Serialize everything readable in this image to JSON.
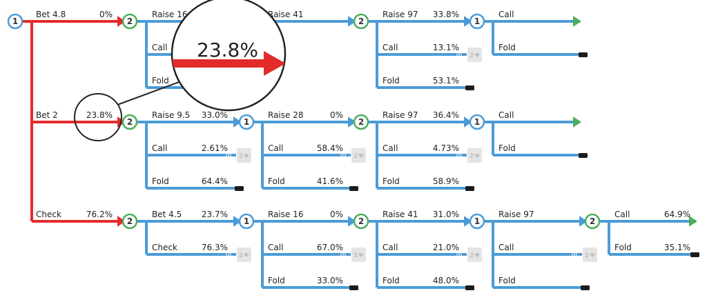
{
  "colors": {
    "red": "#e32b2b",
    "blue": "#4b9bd7",
    "green": "#4cae5a",
    "end": "#1c1c1c",
    "card_bg": "#e4e4e4"
  },
  "nodes": [
    {
      "id": "n0",
      "player": "1",
      "color": "blue"
    },
    {
      "id": "n1",
      "player": "2",
      "color": "green"
    },
    {
      "id": "n4",
      "player": "2",
      "color": "green"
    },
    {
      "id": "n5",
      "player": "1",
      "color": "blue"
    },
    {
      "id": "n6",
      "player": "2",
      "color": "green"
    },
    {
      "id": "n7",
      "player": "1",
      "color": "blue"
    },
    {
      "id": "n8",
      "player": "2",
      "color": "green"
    },
    {
      "id": "n9",
      "player": "1",
      "color": "blue"
    },
    {
      "id": "n10",
      "player": "1",
      "color": "blue"
    },
    {
      "id": "n11",
      "player": "2",
      "color": "green"
    },
    {
      "id": "n12",
      "player": "1",
      "color": "blue"
    },
    {
      "id": "n13",
      "player": "2",
      "color": "green"
    }
  ],
  "edges": [
    {
      "id": "e-bet48",
      "label": "Bet 4.8",
      "pct": "0%",
      "color": "red"
    },
    {
      "id": "e-bet2",
      "label": "Bet 2",
      "pct": "23.8%",
      "color": "red"
    },
    {
      "id": "e-check",
      "label": "Check",
      "pct": "76.2%",
      "color": "red"
    },
    {
      "id": "e-r1-raise165",
      "label": "Raise 16.5",
      "pct": "",
      "color": "blue"
    },
    {
      "id": "e-r1-call",
      "label": "Call",
      "pct": "",
      "color": "blue"
    },
    {
      "id": "e-r1-fold",
      "label": "Fold",
      "pct": "",
      "color": "blue"
    },
    {
      "id": "e-r1-raise41",
      "label": "Raise 41",
      "pct": "",
      "color": "blue"
    },
    {
      "id": "e-r1-raise97",
      "label": "Raise 97",
      "pct": "33.8%",
      "color": "blue"
    },
    {
      "id": "e-r1-call2",
      "label": "Call",
      "pct": "13.1%",
      "color": "blue"
    },
    {
      "id": "e-r1-fold2",
      "label": "Fold",
      "pct": "53.1%",
      "color": "blue"
    },
    {
      "id": "e-r1-call3",
      "label": "Call",
      "pct": "",
      "color": "blue"
    },
    {
      "id": "e-r1-fold3",
      "label": "Fold",
      "pct": "",
      "color": "blue"
    },
    {
      "id": "e-r2-raise95",
      "label": "Raise 9.5",
      "pct": "33.0%",
      "color": "blue"
    },
    {
      "id": "e-r2-call",
      "label": "Call",
      "pct": "2.61%",
      "color": "blue"
    },
    {
      "id": "e-r2-fold",
      "label": "Fold",
      "pct": "64.4%",
      "color": "blue"
    },
    {
      "id": "e-r2-raise28",
      "label": "Raise 28",
      "pct": "0%",
      "color": "blue"
    },
    {
      "id": "e-r2-call2",
      "label": "Call",
      "pct": "58.4%",
      "color": "blue"
    },
    {
      "id": "e-r2-fold2",
      "label": "Fold",
      "pct": "41.6%",
      "color": "blue"
    },
    {
      "id": "e-r2-raise97",
      "label": "Raise 97",
      "pct": "36.4%",
      "color": "blue"
    },
    {
      "id": "e-r2-call3",
      "label": "Call",
      "pct": "4.73%",
      "color": "blue"
    },
    {
      "id": "e-r2-fold3",
      "label": "Fold",
      "pct": "58.9%",
      "color": "blue"
    },
    {
      "id": "e-r2-call4",
      "label": "Call",
      "pct": "",
      "color": "blue"
    },
    {
      "id": "e-r2-fold4",
      "label": "Fold",
      "pct": "",
      "color": "blue"
    },
    {
      "id": "e-r3-bet45",
      "label": "Bet 4.5",
      "pct": "23.7%",
      "color": "blue"
    },
    {
      "id": "e-r3-check",
      "label": "Check",
      "pct": "76.3%",
      "color": "blue"
    },
    {
      "id": "e-r3-raise16",
      "label": "Raise 16",
      "pct": "0%",
      "color": "blue"
    },
    {
      "id": "e-r3-call",
      "label": "Call",
      "pct": "67.0%",
      "color": "blue"
    },
    {
      "id": "e-r3-fold",
      "label": "Fold",
      "pct": "33.0%",
      "color": "blue"
    },
    {
      "id": "e-r3-raise41",
      "label": "Raise 41",
      "pct": "31.0%",
      "color": "blue"
    },
    {
      "id": "e-r3-call2",
      "label": "Call",
      "pct": "21.0%",
      "color": "blue"
    },
    {
      "id": "e-r3-fold2",
      "label": "Fold",
      "pct": "48.0%",
      "color": "blue"
    },
    {
      "id": "e-r3-raise97",
      "label": "Raise 97",
      "pct": "",
      "color": "blue"
    },
    {
      "id": "e-r3-call3",
      "label": "Call",
      "pct": "",
      "color": "blue"
    },
    {
      "id": "e-r3-fold3",
      "label": "Fold",
      "pct": "",
      "color": "blue"
    },
    {
      "id": "e-r3-call4",
      "label": "Call",
      "pct": "64.9%",
      "color": "blue"
    },
    {
      "id": "e-r3-fold4",
      "label": "Fold",
      "pct": "35.1%",
      "color": "blue"
    }
  ],
  "subtree_card_label": "2",
  "subtree_card_icon": "heart-icon",
  "zoom": {
    "pct": "23.8%",
    "arrow_color": "red"
  }
}
